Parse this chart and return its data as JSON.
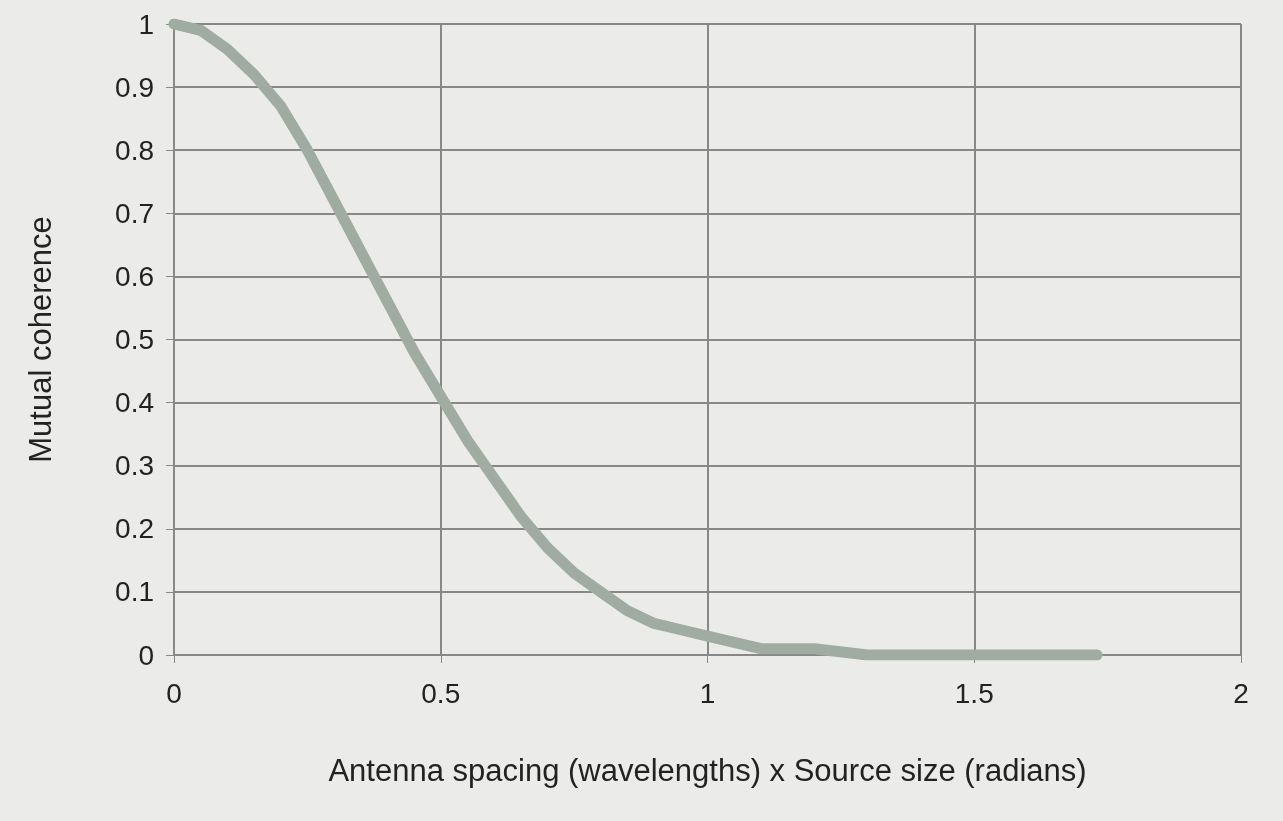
{
  "chart_data": {
    "type": "line",
    "xlabel": "Antenna spacing (wavelengths) x Source size (radians)",
    "ylabel": "Mutual coherence",
    "x": [
      0,
      0.05,
      0.1,
      0.15,
      0.2,
      0.25,
      0.3,
      0.35,
      0.4,
      0.45,
      0.5,
      0.55,
      0.6,
      0.65,
      0.7,
      0.75,
      0.8,
      0.85,
      0.9,
      0.95,
      1,
      1.1,
      1.2,
      1.3,
      1.4,
      1.5,
      1.6,
      1.73
    ],
    "series": [
      {
        "color": "#a0aca2",
        "values": [
          1,
          0.99,
          0.96,
          0.92,
          0.87,
          0.8,
          0.72,
          0.64,
          0.56,
          0.48,
          0.41,
          0.34,
          0.28,
          0.22,
          0.17,
          0.13,
          0.1,
          0.07,
          0.05,
          0.04,
          0.03,
          0.01,
          0.01,
          0,
          0,
          0,
          0,
          0
        ]
      }
    ],
    "xlim": [
      0,
      2
    ],
    "xticks": [
      0,
      0.5,
      1,
      1.5,
      2
    ],
    "ylim": [
      0,
      1
    ],
    "yticks": [
      0,
      0.1,
      0.2,
      0.3,
      0.4,
      0.5,
      0.6,
      0.7,
      0.8,
      0.9,
      1
    ],
    "grid": true,
    "line_style": "solid"
  }
}
